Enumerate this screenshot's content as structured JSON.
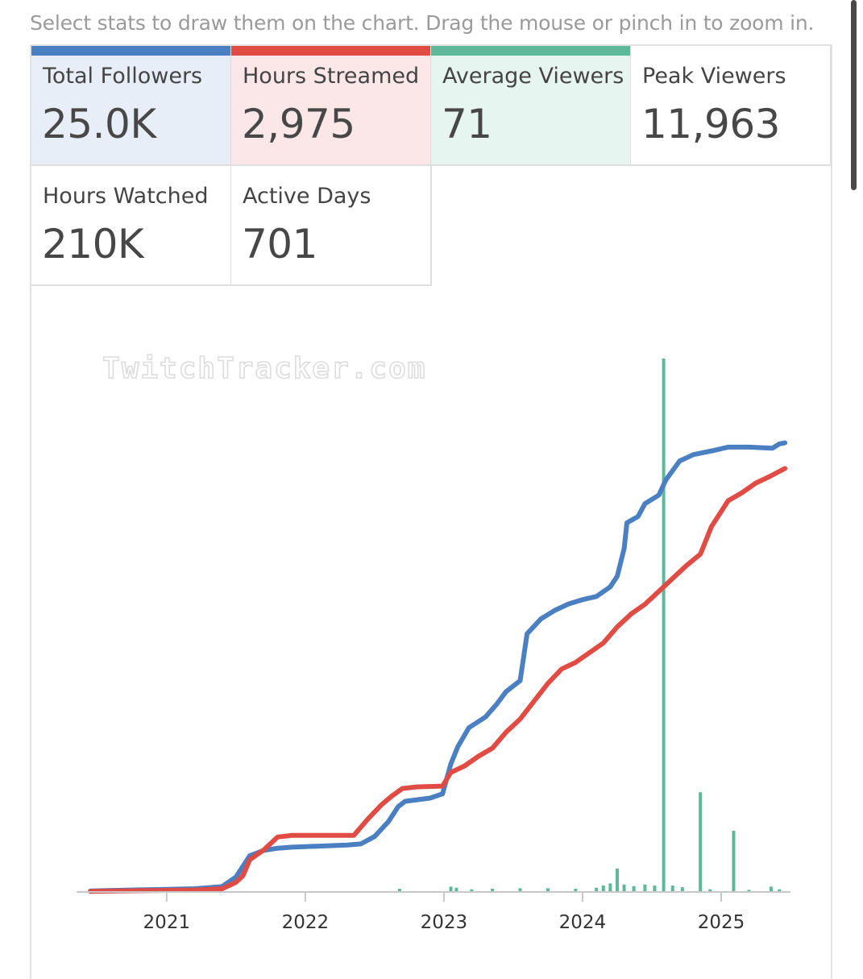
{
  "hint": "Select stats to draw them on the chart. Drag the mouse or pinch in to zoom in.",
  "stats": [
    {
      "label": "Total Followers",
      "value": "25.0K",
      "accent": "#4a7fc1",
      "tint": "#e8eef7",
      "selected": true
    },
    {
      "label": "Hours Streamed",
      "value": "2,975",
      "accent": "#e04b44",
      "tint": "#fbe7e8",
      "selected": true
    },
    {
      "label": "Average Viewers",
      "value": "71",
      "accent": "#5db99a",
      "tint": "#e7f5f1",
      "selected": true
    },
    {
      "label": "Peak Viewers",
      "value": "11,963",
      "accent": "",
      "tint": "#ffffff",
      "selected": false
    },
    {
      "label": "Hours Watched",
      "value": "210K",
      "accent": "",
      "tint": "#ffffff",
      "selected": false
    },
    {
      "label": "Active Days",
      "value": "701",
      "accent": "",
      "tint": "#ffffff",
      "selected": false
    }
  ],
  "watermark": "TwitchTracker.com",
  "chart_data": {
    "type": "line",
    "x_ticks": [
      "2021",
      "2022",
      "2023",
      "2024",
      "2025"
    ],
    "x_range": [
      2020.35,
      2025.5
    ],
    "grid": false,
    "legend": "none",
    "series": [
      {
        "key": "followers",
        "type": "line",
        "color": "#4a7fc1",
        "y_range": [
          0,
          25000
        ],
        "points": [
          [
            2020.45,
            50
          ],
          [
            2020.8,
            100
          ],
          [
            2021.0,
            120
          ],
          [
            2021.2,
            150
          ],
          [
            2021.4,
            250
          ],
          [
            2021.5,
            700
          ],
          [
            2021.6,
            1700
          ],
          [
            2021.7,
            1950
          ],
          [
            2021.8,
            2050
          ],
          [
            2021.9,
            2100
          ],
          [
            2022.1,
            2150
          ],
          [
            2022.3,
            2200
          ],
          [
            2022.4,
            2250
          ],
          [
            2022.5,
            2600
          ],
          [
            2022.6,
            3300
          ],
          [
            2022.67,
            4000
          ],
          [
            2022.72,
            4250
          ],
          [
            2022.9,
            4400
          ],
          [
            2022.99,
            4600
          ],
          [
            2023.05,
            6000
          ],
          [
            2023.1,
            6800
          ],
          [
            2023.18,
            7700
          ],
          [
            2023.3,
            8200
          ],
          [
            2023.38,
            8800
          ],
          [
            2023.45,
            9400
          ],
          [
            2023.55,
            9900
          ],
          [
            2023.6,
            12100
          ],
          [
            2023.7,
            12800
          ],
          [
            2023.8,
            13200
          ],
          [
            2023.9,
            13500
          ],
          [
            2024.0,
            13700
          ],
          [
            2024.1,
            13850
          ],
          [
            2024.2,
            14300
          ],
          [
            2024.25,
            14800
          ],
          [
            2024.3,
            16100
          ],
          [
            2024.32,
            17300
          ],
          [
            2024.4,
            17600
          ],
          [
            2024.45,
            18200
          ],
          [
            2024.55,
            18600
          ],
          [
            2024.6,
            19300
          ],
          [
            2024.7,
            20200
          ],
          [
            2024.8,
            20500
          ],
          [
            2024.95,
            20700
          ],
          [
            2025.05,
            20850
          ],
          [
            2025.2,
            20850
          ],
          [
            2025.37,
            20800
          ],
          [
            2025.42,
            21000
          ],
          [
            2025.46,
            21050
          ]
        ]
      },
      {
        "key": "hours_streamed",
        "type": "line",
        "color": "#e04b44",
        "y_range": [
          0,
          3300
        ],
        "points": [
          [
            2020.45,
            4
          ],
          [
            2020.8,
            8
          ],
          [
            2021.0,
            10
          ],
          [
            2021.2,
            12
          ],
          [
            2021.4,
            20
          ],
          [
            2021.5,
            60
          ],
          [
            2021.55,
            100
          ],
          [
            2021.6,
            200
          ],
          [
            2021.7,
            260
          ],
          [
            2021.8,
            340
          ],
          [
            2021.9,
            350
          ],
          [
            2022.35,
            350
          ],
          [
            2022.45,
            450
          ],
          [
            2022.55,
            540
          ],
          [
            2022.62,
            590
          ],
          [
            2022.7,
            640
          ],
          [
            2022.8,
            650
          ],
          [
            2022.99,
            655
          ],
          [
            2023.05,
            740
          ],
          [
            2023.15,
            780
          ],
          [
            2023.25,
            840
          ],
          [
            2023.35,
            890
          ],
          [
            2023.45,
            990
          ],
          [
            2023.55,
            1070
          ],
          [
            2023.65,
            1180
          ],
          [
            2023.75,
            1290
          ],
          [
            2023.85,
            1380
          ],
          [
            2023.95,
            1420
          ],
          [
            2024.05,
            1480
          ],
          [
            2024.15,
            1540
          ],
          [
            2024.25,
            1640
          ],
          [
            2024.35,
            1720
          ],
          [
            2024.45,
            1780
          ],
          [
            2024.55,
            1860
          ],
          [
            2024.65,
            1940
          ],
          [
            2024.75,
            2020
          ],
          [
            2024.85,
            2090
          ],
          [
            2024.93,
            2260
          ],
          [
            2025.05,
            2420
          ],
          [
            2025.15,
            2470
          ],
          [
            2025.25,
            2530
          ],
          [
            2025.35,
            2570
          ],
          [
            2025.46,
            2620
          ]
        ]
      },
      {
        "key": "average_viewers",
        "type": "bar",
        "color": "#5db99a",
        "y_range": [
          0,
          1000
        ],
        "bars": [
          [
            2022.68,
            6
          ],
          [
            2023.05,
            10
          ],
          [
            2023.09,
            8
          ],
          [
            2023.2,
            5
          ],
          [
            2023.35,
            6
          ],
          [
            2023.55,
            7
          ],
          [
            2023.75,
            7
          ],
          [
            2023.95,
            6
          ],
          [
            2024.1,
            8
          ],
          [
            2024.15,
            12
          ],
          [
            2024.2,
            16
          ],
          [
            2024.25,
            44
          ],
          [
            2024.3,
            14
          ],
          [
            2024.37,
            11
          ],
          [
            2024.45,
            14
          ],
          [
            2024.52,
            12
          ],
          [
            2024.585,
            1000
          ],
          [
            2024.65,
            12
          ],
          [
            2024.72,
            9
          ],
          [
            2024.85,
            187
          ],
          [
            2024.92,
            5
          ],
          [
            2025.09,
            115
          ],
          [
            2025.2,
            4
          ],
          [
            2025.36,
            10
          ],
          [
            2025.42,
            5
          ]
        ]
      }
    ]
  }
}
